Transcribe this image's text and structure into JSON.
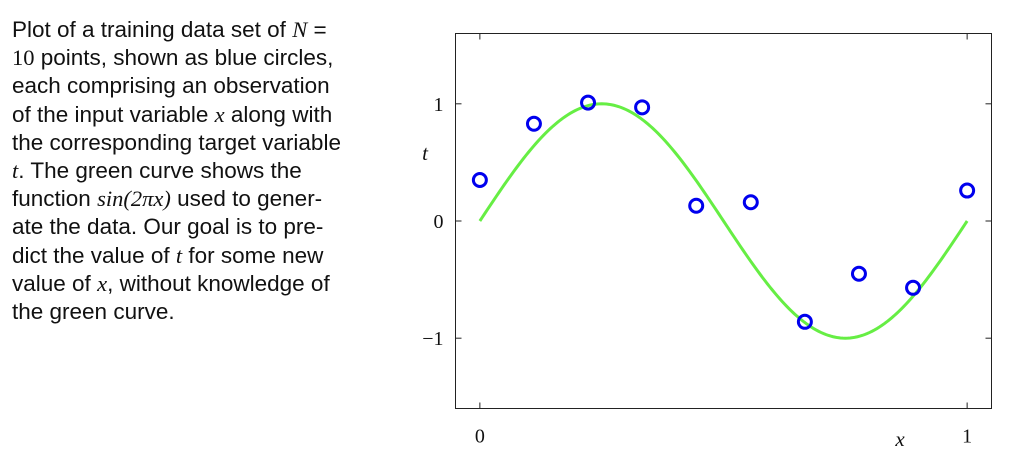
{
  "caption": {
    "lines": [
      [
        {
          "t": "Plot of a training data set of "
        },
        {
          "t": "N",
          "c": "math"
        },
        {
          "t": " ="
        }
      ],
      [
        {
          "t": "10",
          "c": "num"
        },
        {
          "t": " points, shown as blue circles,"
        }
      ],
      [
        {
          "t": "each comprising an observation"
        }
      ],
      [
        {
          "t": "of the input variable "
        },
        {
          "t": "x",
          "c": "math"
        },
        {
          "t": " along with"
        }
      ],
      [
        {
          "t": "the corresponding target variable"
        }
      ],
      [
        {
          "t": "t",
          "c": "math"
        },
        {
          "t": ".  The green curve shows the"
        }
      ],
      [
        {
          "t": "function "
        },
        {
          "t": "sin(2πx)",
          "c": "math"
        },
        {
          "t": " used to gener-"
        }
      ],
      [
        {
          "t": "ate the data.  Our goal is to pre-"
        }
      ],
      [
        {
          "t": "dict the value of "
        },
        {
          "t": "t",
          "c": "math"
        },
        {
          "t": " for some new"
        }
      ],
      [
        {
          "t": "value of "
        },
        {
          "t": "x",
          "c": "math"
        },
        {
          "t": ", without knowledge of"
        }
      ],
      [
        {
          "t": "the green curve."
        }
      ]
    ]
  },
  "chart_data": {
    "type": "scatter",
    "xlabel": "x",
    "ylabel": "t",
    "xlim": [
      -0.05,
      1.05
    ],
    "ylim": [
      -1.6,
      1.6
    ],
    "x_ticks": [
      {
        "value": 0,
        "label": "0"
      },
      {
        "value": 1,
        "label": "1"
      }
    ],
    "y_ticks": [
      {
        "value": -1,
        "label": "−1"
      },
      {
        "value": 0,
        "label": "0"
      },
      {
        "value": 1,
        "label": "1"
      }
    ],
    "grid": false,
    "points": {
      "color": "#0000ee",
      "x": [
        0.0,
        0.111,
        0.222,
        0.333,
        0.444,
        0.556,
        0.667,
        0.778,
        0.889,
        1.0
      ],
      "y": [
        0.35,
        0.83,
        1.01,
        0.97,
        0.13,
        0.16,
        -0.86,
        -0.45,
        -0.57,
        0.26
      ]
    },
    "curve": {
      "color": "#66ee44",
      "function": "sin(2πx)",
      "x_range": [
        0,
        1
      ]
    }
  }
}
